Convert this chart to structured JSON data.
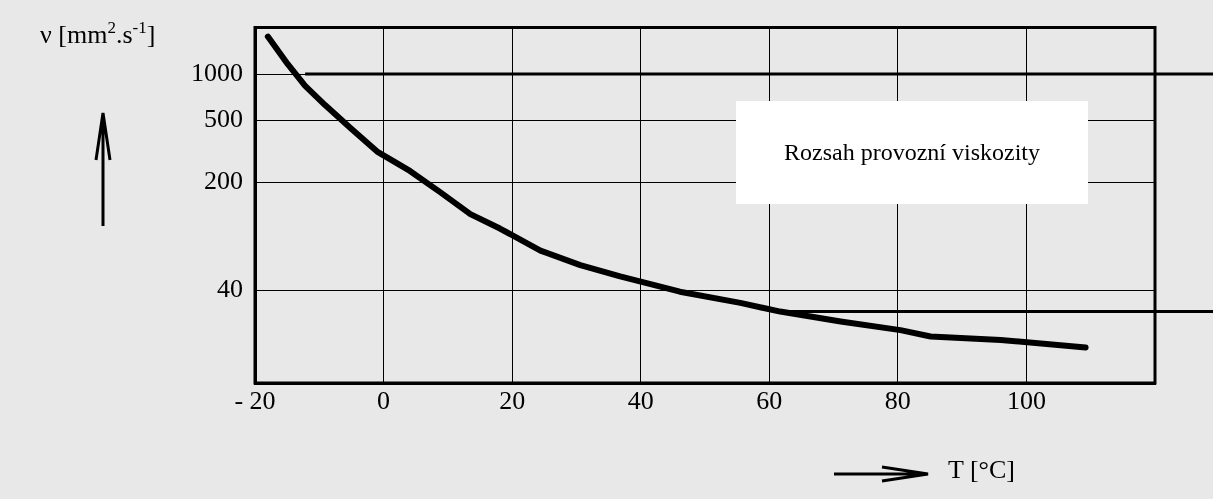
{
  "chart_data": {
    "type": "line",
    "xlabel": "T  [°C]",
    "ylabel": "ν  [mm$^{2}$.s$^{-1}$]",
    "x": [
      -18,
      -14.9,
      -12.2,
      -9.1,
      -5.2,
      -1,
      4.1,
      8.8,
      13.5,
      18.1,
      24.4,
      30.6,
      36.8,
      46.1,
      55.5,
      61.7,
      71.1,
      80.4,
      85.1,
      96,
      109.2
    ],
    "series": [
      {
        "color": "#000000",
        "values": [
          1750,
          1160,
          840,
          630,
          450,
          315,
          236,
          172,
          124,
          100,
          72,
          58,
          49,
          39,
          33,
          29,
          25,
          22,
          20,
          19,
          17
        ]
      }
    ],
    "xlim": [
      -20,
      120
    ],
    "xticks": [
      {
        "value": -20,
        "label": "- 20"
      },
      0,
      20,
      40,
      60,
      80,
      100
    ],
    "ylim": [
      10,
      2000
    ],
    "yticks": [
      40,
      200,
      500,
      1000
    ],
    "ref_lines": [
      {
        "axis": "y",
        "value": 1000
      },
      {
        "axis": "y",
        "value": 29
      }
    ],
    "annotations": [
      "Rozsah provozní viskozity"
    ],
    "log": "y",
    "grid": true,
    "legend": false,
    "marker": "none",
    "line_style": "solid"
  }
}
